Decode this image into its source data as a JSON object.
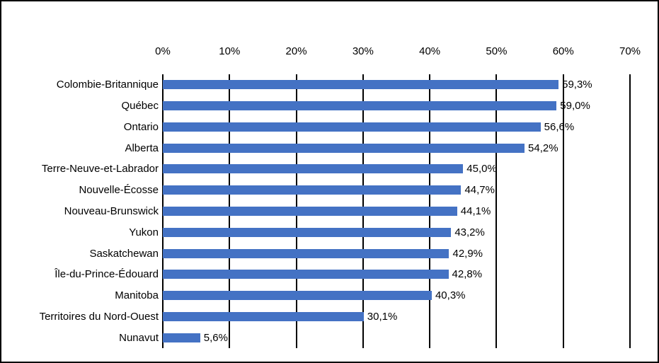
{
  "chart_data": {
    "type": "bar",
    "orientation": "horizontal",
    "title": "",
    "xlabel": "",
    "ylabel": "",
    "axis_position": "top",
    "xlim": [
      0,
      70
    ],
    "x_ticks": [
      "0%",
      "10%",
      "20%",
      "30%",
      "40%",
      "50%",
      "60%",
      "70%"
    ],
    "categories": [
      "Colombie-Britannique",
      "Québec",
      "Ontario",
      "Alberta",
      "Terre-Neuve-et-Labrador",
      "Nouvelle-Écosse",
      "Nouveau-Brunswick",
      "Yukon",
      "Saskatchewan",
      "Île-du-Prince-Édouard",
      "Manitoba",
      "Territoires du Nord-Ouest",
      "Nunavut"
    ],
    "values": [
      59.3,
      59.0,
      56.6,
      54.2,
      45.0,
      44.7,
      44.1,
      43.2,
      42.9,
      42.8,
      40.3,
      30.1,
      5.6
    ],
    "data_labels": [
      "59,3%",
      "59,0%",
      "56,6%",
      "54,2%",
      "45,0%",
      "44,7%",
      "44,1%",
      "43,2%",
      "42,9%",
      "42,8%",
      "40,3%",
      "30,1%",
      "5,6%"
    ],
    "bar_color": "#4472C4",
    "gridline_color": "#000000",
    "grid": true,
    "legend": false
  }
}
